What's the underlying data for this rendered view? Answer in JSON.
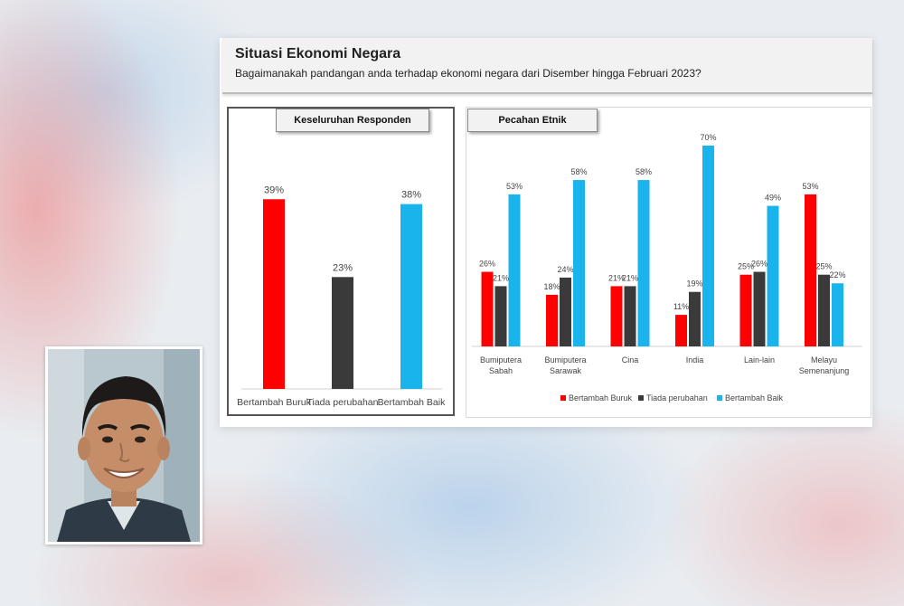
{
  "header": {
    "title": "Situasi Ekonomi Negara",
    "subtitle": "Bagaimanakah pandangan anda terhadap ekonomi negara dari Disember hingga Februari 2023?"
  },
  "colors": {
    "worse": "#ff0000",
    "no_change": "#3a3a3a",
    "better": "#19b4ec"
  },
  "chart_data": [
    {
      "type": "bar",
      "title": "Keseluruhan Responden",
      "categories": [
        "Bertambah Buruk",
        "Tiada perubahan",
        "Bertambah Baik"
      ],
      "values": [
        39,
        23,
        38
      ],
      "value_labels": [
        "39%",
        "23%",
        "38%"
      ],
      "ylim": [
        0,
        45
      ]
    },
    {
      "type": "bar",
      "title": "Pecahan Etnik",
      "categories": [
        [
          "Bumiputera",
          "Sabah"
        ],
        [
          "Bumiputera",
          "Sarawak"
        ],
        [
          "Cina"
        ],
        [
          "India"
        ],
        [
          "Lain-lain"
        ],
        [
          "Melayu",
          "Semenanjung"
        ]
      ],
      "series": [
        {
          "name": "Bertambah Buruk",
          "values": [
            26,
            18,
            21,
            11,
            25,
            53
          ]
        },
        {
          "name": "Tiada perubahan",
          "values": [
            21,
            24,
            21,
            19,
            26,
            25
          ]
        },
        {
          "name": "Bertambah Baik",
          "values": [
            53,
            58,
            58,
            70,
            49,
            22
          ]
        }
      ],
      "legend": "bottom",
      "ylim": [
        0,
        75
      ]
    }
  ]
}
